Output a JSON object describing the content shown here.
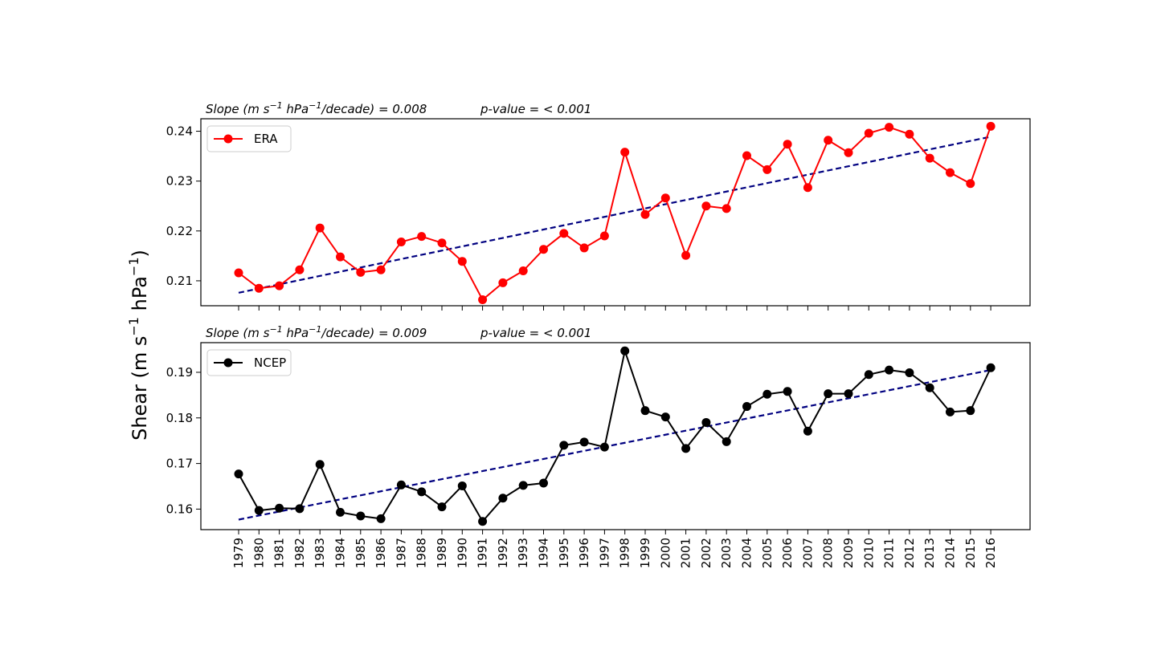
{
  "ylabel": {
    "base": "Shear (m s",
    "sup1": "−1",
    "mid": " hPa",
    "sup2": "−1",
    "end": ")"
  },
  "chart_data": [
    {
      "type": "line",
      "title": {
        "pre": "Slope (m s",
        "sup1": "−1",
        "mid": " hPa",
        "sup2": "−1",
        "post": "/decade) = 0.008",
        "pvalue": "p-value = < 0.001"
      },
      "x": [
        1979,
        1980,
        1981,
        1982,
        1983,
        1984,
        1985,
        1986,
        1987,
        1988,
        1989,
        1990,
        1991,
        1992,
        1993,
        1994,
        1995,
        1996,
        1997,
        1998,
        1999,
        2000,
        2001,
        2002,
        2003,
        2004,
        2005,
        2006,
        2007,
        2008,
        2009,
        2010,
        2011,
        2012,
        2013,
        2014,
        2015,
        2016
      ],
      "series": [
        {
          "name": "ERA",
          "color": "#ff0000",
          "values": [
            0.2116,
            0.2085,
            0.209,
            0.2122,
            0.2206,
            0.2148,
            0.2117,
            0.2122,
            0.2178,
            0.2189,
            0.2176,
            0.2139,
            0.2062,
            0.2096,
            0.212,
            0.2163,
            0.2195,
            0.2166,
            0.219,
            0.2358,
            0.2233,
            0.2266,
            0.2151,
            0.225,
            0.2245,
            0.2351,
            0.2323,
            0.2374,
            0.2287,
            0.2382,
            0.2357,
            0.2396,
            0.2408,
            0.2394,
            0.2346,
            0.2317,
            0.2295,
            0.241
          ]
        }
      ],
      "trend": {
        "start": 0.2076,
        "end": 0.2389,
        "color": "#000080"
      },
      "ylim": [
        0.205,
        0.2425
      ],
      "yticks": [
        0.21,
        0.22,
        0.23,
        0.24
      ],
      "ytick_labels": [
        "0.21",
        "0.22",
        "0.23",
        "0.24"
      ],
      "legend": "upper-left"
    },
    {
      "type": "line",
      "title": {
        "pre": "Slope (m s",
        "sup1": "−1",
        "mid": " hPa",
        "sup2": "−1",
        "post": "/decade) = 0.009",
        "pvalue": "p-value = < 0.001"
      },
      "x": [
        1979,
        1980,
        1981,
        1982,
        1983,
        1984,
        1985,
        1986,
        1987,
        1988,
        1989,
        1990,
        1991,
        1992,
        1993,
        1994,
        1995,
        1996,
        1997,
        1998,
        1999,
        2000,
        2001,
        2002,
        2003,
        2004,
        2005,
        2006,
        2007,
        2008,
        2009,
        2010,
        2011,
        2012,
        2013,
        2014,
        2015,
        2016
      ],
      "series": [
        {
          "name": "NCEP",
          "color": "#000000",
          "values": [
            0.1677,
            0.1597,
            0.1602,
            0.1601,
            0.1698,
            0.1593,
            0.1585,
            0.1579,
            0.1653,
            0.1638,
            0.1605,
            0.1651,
            0.1573,
            0.1624,
            0.1652,
            0.1657,
            0.174,
            0.1747,
            0.1736,
            0.1947,
            0.1816,
            0.1802,
            0.1733,
            0.179,
            0.1748,
            0.1825,
            0.1852,
            0.1858,
            0.1771,
            0.1853,
            0.1853,
            0.1895,
            0.1905,
            0.1899,
            0.1866,
            0.1813,
            0.1816,
            0.191
          ]
        }
      ],
      "trend": {
        "start": 0.1577,
        "end": 0.1905,
        "color": "#000080"
      },
      "ylim": [
        0.1555,
        0.1965
      ],
      "yticks": [
        0.16,
        0.17,
        0.18,
        0.19
      ],
      "ytick_labels": [
        "0.16",
        "0.17",
        "0.18",
        "0.19"
      ],
      "legend": "upper-left"
    }
  ],
  "xtick_labels": [
    "1979",
    "1980",
    "1981",
    "1982",
    "1983",
    "1984",
    "1985",
    "1986",
    "1987",
    "1988",
    "1989",
    "1990",
    "1991",
    "1992",
    "1993",
    "1994",
    "1995",
    "1996",
    "1997",
    "1998",
    "1999",
    "2000",
    "2001",
    "2002",
    "2003",
    "2004",
    "2005",
    "2006",
    "2007",
    "2008",
    "2009",
    "2010",
    "2011",
    "2012",
    "2013",
    "2014",
    "2015",
    "2016"
  ]
}
